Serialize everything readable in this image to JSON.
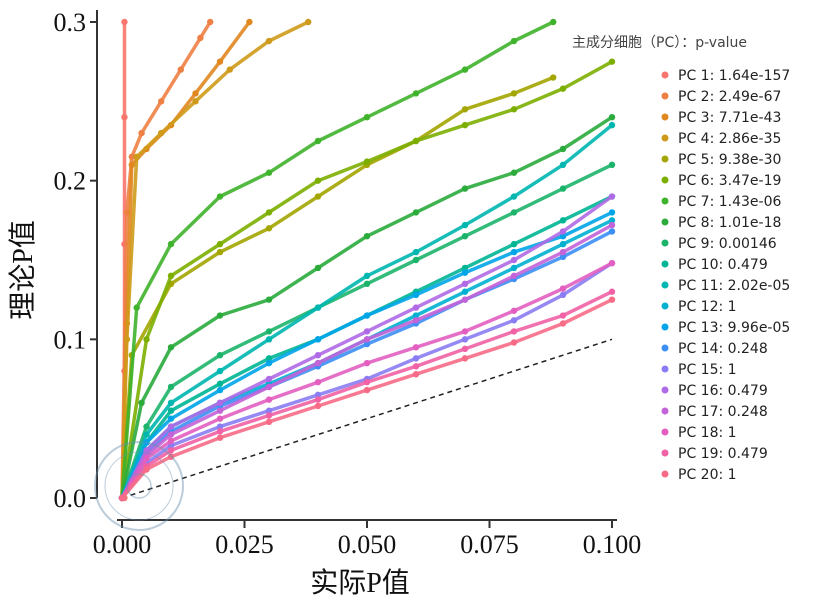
{
  "chart_data": {
    "type": "scatter",
    "title": "",
    "xlabel": "实际P值",
    "ylabel": "理论P值",
    "xlim": [
      0,
      0.1
    ],
    "ylim": [
      0,
      0.3
    ],
    "x_ticks": [
      0,
      0.025,
      0.05,
      0.075,
      0.1
    ],
    "x_tick_labels": [
      "0.000",
      "0.025",
      "0.050",
      "0.075",
      "0.100"
    ],
    "y_ticks": [
      0,
      0.1,
      0.2,
      0.3
    ],
    "y_tick_labels": [
      "0.0",
      "0.1",
      "0.2",
      "0.3"
    ],
    "grid": false,
    "legend_title": "主成分细胞（PC）：p-value",
    "legend_position": "right",
    "reference_line": {
      "style": "dashed",
      "x": [
        0.0,
        0.1
      ],
      "y": [
        0.0,
        0.1
      ]
    },
    "series": [
      {
        "name": "PC 1",
        "label": "PC 1: 1.64e-157",
        "color": "#f8766d",
        "x": [
          0.0005,
          0.0005,
          0.0005,
          0.0005,
          0.0005
        ],
        "y": [
          0.0,
          0.08,
          0.16,
          0.24,
          0.3
        ]
      },
      {
        "name": "PC 2",
        "label": "PC 2: 2.49e-67",
        "color": "#ee8044",
        "x": [
          0.0,
          0.001,
          0.002,
          0.004,
          0.008,
          0.012,
          0.016,
          0.018
        ],
        "y": [
          0.0,
          0.18,
          0.215,
          0.23,
          0.25,
          0.27,
          0.29,
          0.3
        ]
      },
      {
        "name": "PC 3",
        "label": "PC 3: 7.71e-43",
        "color": "#e0871f",
        "x": [
          0.0,
          0.001,
          0.002,
          0.005,
          0.01,
          0.015,
          0.02,
          0.026
        ],
        "y": [
          0.0,
          0.11,
          0.21,
          0.22,
          0.235,
          0.255,
          0.275,
          0.3
        ]
      },
      {
        "name": "PC 4",
        "label": "PC 4: 2.86e-35",
        "color": "#cf9a1a",
        "x": [
          0.0,
          0.001,
          0.003,
          0.008,
          0.015,
          0.022,
          0.03,
          0.038
        ],
        "y": [
          0.0,
          0.1,
          0.215,
          0.23,
          0.25,
          0.27,
          0.288,
          0.3
        ]
      },
      {
        "name": "PC 5",
        "label": "PC 5: 9.38e-30",
        "color": "#a3a500",
        "x": [
          0.0,
          0.002,
          0.01,
          0.02,
          0.03,
          0.04,
          0.05,
          0.06,
          0.07,
          0.08,
          0.088
        ],
        "y": [
          0.0,
          0.09,
          0.135,
          0.155,
          0.17,
          0.19,
          0.21,
          0.225,
          0.245,
          0.255,
          0.265
        ]
      },
      {
        "name": "PC 6",
        "label": "PC 6: 3.47e-19",
        "color": "#7cae00",
        "x": [
          0.0,
          0.005,
          0.01,
          0.02,
          0.03,
          0.04,
          0.05,
          0.06,
          0.07,
          0.08,
          0.09,
          0.1
        ],
        "y": [
          0.0,
          0.1,
          0.14,
          0.16,
          0.18,
          0.2,
          0.212,
          0.225,
          0.235,
          0.245,
          0.258,
          0.275
        ]
      },
      {
        "name": "PC 7",
        "label": "PC 7: 1.43e-06",
        "color": "#3fb32b",
        "x": [
          0.0,
          0.003,
          0.01,
          0.02,
          0.03,
          0.04,
          0.05,
          0.06,
          0.07,
          0.08,
          0.088
        ],
        "y": [
          0.0,
          0.12,
          0.16,
          0.19,
          0.205,
          0.225,
          0.24,
          0.255,
          0.27,
          0.288,
          0.3
        ]
      },
      {
        "name": "PC 8",
        "label": "PC 8: 1.01e-18",
        "color": "#2aab3c",
        "x": [
          0.0,
          0.004,
          0.01,
          0.02,
          0.03,
          0.04,
          0.05,
          0.06,
          0.07,
          0.08,
          0.09,
          0.1
        ],
        "y": [
          0.0,
          0.06,
          0.095,
          0.115,
          0.125,
          0.145,
          0.165,
          0.18,
          0.195,
          0.205,
          0.22,
          0.24
        ]
      },
      {
        "name": "PC 9",
        "label": "PC 9: 0.00146",
        "color": "#1cb46a",
        "x": [
          0.0,
          0.005,
          0.01,
          0.02,
          0.03,
          0.04,
          0.05,
          0.06,
          0.07,
          0.08,
          0.09,
          0.1
        ],
        "y": [
          0.0,
          0.045,
          0.07,
          0.09,
          0.105,
          0.12,
          0.135,
          0.15,
          0.165,
          0.18,
          0.195,
          0.21
        ]
      },
      {
        "name": "PC 10",
        "label": "PC 10: 0.479",
        "color": "#00b594",
        "x": [
          0.0,
          0.005,
          0.01,
          0.02,
          0.03,
          0.04,
          0.05,
          0.06,
          0.07,
          0.08,
          0.09,
          0.1
        ],
        "y": [
          0.0,
          0.035,
          0.055,
          0.072,
          0.088,
          0.1,
          0.115,
          0.13,
          0.145,
          0.16,
          0.175,
          0.19
        ]
      },
      {
        "name": "PC 11",
        "label": "PC 11: 2.02e-05",
        "color": "#00b6b0",
        "x": [
          0.0,
          0.005,
          0.01,
          0.02,
          0.03,
          0.04,
          0.05,
          0.06,
          0.07,
          0.08,
          0.09,
          0.1
        ],
        "y": [
          0.0,
          0.04,
          0.06,
          0.08,
          0.1,
          0.12,
          0.14,
          0.155,
          0.172,
          0.19,
          0.21,
          0.235
        ]
      },
      {
        "name": "PC 12",
        "label": "PC 12: 1",
        "color": "#00b0d0",
        "x": [
          0.0,
          0.005,
          0.01,
          0.02,
          0.03,
          0.04,
          0.05,
          0.06,
          0.07,
          0.08,
          0.09,
          0.1
        ],
        "y": [
          0.0,
          0.03,
          0.045,
          0.06,
          0.072,
          0.085,
          0.1,
          0.115,
          0.13,
          0.145,
          0.16,
          0.175
        ]
      },
      {
        "name": "PC 13",
        "label": "PC 13: 9.96e-05",
        "color": "#00a5e8",
        "x": [
          0.0,
          0.005,
          0.01,
          0.02,
          0.03,
          0.04,
          0.05,
          0.06,
          0.07,
          0.08,
          0.09,
          0.1
        ],
        "y": [
          0.0,
          0.035,
          0.05,
          0.068,
          0.085,
          0.1,
          0.115,
          0.128,
          0.142,
          0.155,
          0.165,
          0.18
        ]
      },
      {
        "name": "PC 14",
        "label": "PC 14: 0.248",
        "color": "#3d8ff5",
        "x": [
          0.0,
          0.005,
          0.01,
          0.02,
          0.03,
          0.04,
          0.05,
          0.06,
          0.07,
          0.08,
          0.09,
          0.1
        ],
        "y": [
          0.0,
          0.028,
          0.042,
          0.058,
          0.07,
          0.083,
          0.097,
          0.11,
          0.125,
          0.138,
          0.152,
          0.168
        ]
      },
      {
        "name": "PC 15",
        "label": "PC 15: 1",
        "color": "#8a7cf2",
        "x": [
          0.0,
          0.005,
          0.01,
          0.02,
          0.03,
          0.04,
          0.05,
          0.06,
          0.07,
          0.08,
          0.09,
          0.1
        ],
        "y": [
          0.0,
          0.022,
          0.033,
          0.045,
          0.055,
          0.065,
          0.075,
          0.088,
          0.1,
          0.112,
          0.128,
          0.148
        ]
      },
      {
        "name": "PC 16",
        "label": "PC 16: 0.479",
        "color": "#b06ae6",
        "x": [
          0.0,
          0.005,
          0.01,
          0.02,
          0.03,
          0.04,
          0.05,
          0.06,
          0.07,
          0.08,
          0.09,
          0.1
        ],
        "y": [
          0.0,
          0.03,
          0.045,
          0.06,
          0.075,
          0.09,
          0.105,
          0.12,
          0.135,
          0.15,
          0.168,
          0.19
        ]
      },
      {
        "name": "PC 17",
        "label": "PC 17: 0.248",
        "color": "#c363d8",
        "x": [
          0.0,
          0.005,
          0.01,
          0.02,
          0.03,
          0.04,
          0.05,
          0.06,
          0.07,
          0.08,
          0.09,
          0.1
        ],
        "y": [
          0.0,
          0.027,
          0.04,
          0.055,
          0.07,
          0.085,
          0.1,
          0.112,
          0.125,
          0.14,
          0.155,
          0.172
        ]
      },
      {
        "name": "PC 18",
        "label": "PC 18: 1",
        "color": "#e25fc0",
        "x": [
          0.0,
          0.005,
          0.01,
          0.02,
          0.03,
          0.04,
          0.05,
          0.06,
          0.07,
          0.08,
          0.09,
          0.1
        ],
        "y": [
          0.0,
          0.025,
          0.036,
          0.05,
          0.062,
          0.073,
          0.085,
          0.095,
          0.105,
          0.118,
          0.132,
          0.148
        ]
      },
      {
        "name": "PC 19",
        "label": "PC 19: 0.479",
        "color": "#f062a5",
        "x": [
          0.0,
          0.005,
          0.01,
          0.02,
          0.03,
          0.04,
          0.05,
          0.06,
          0.07,
          0.08,
          0.09,
          0.1
        ],
        "y": [
          0.0,
          0.02,
          0.03,
          0.042,
          0.052,
          0.062,
          0.073,
          0.083,
          0.094,
          0.105,
          0.115,
          0.13
        ]
      },
      {
        "name": "PC 20",
        "label": "PC 20: 1",
        "color": "#f76b86",
        "x": [
          0.0,
          0.005,
          0.01,
          0.02,
          0.03,
          0.04,
          0.05,
          0.06,
          0.07,
          0.08,
          0.09,
          0.1
        ],
        "y": [
          0.0,
          0.018,
          0.026,
          0.038,
          0.048,
          0.058,
          0.068,
          0.078,
          0.088,
          0.098,
          0.11,
          0.125
        ]
      }
    ]
  }
}
